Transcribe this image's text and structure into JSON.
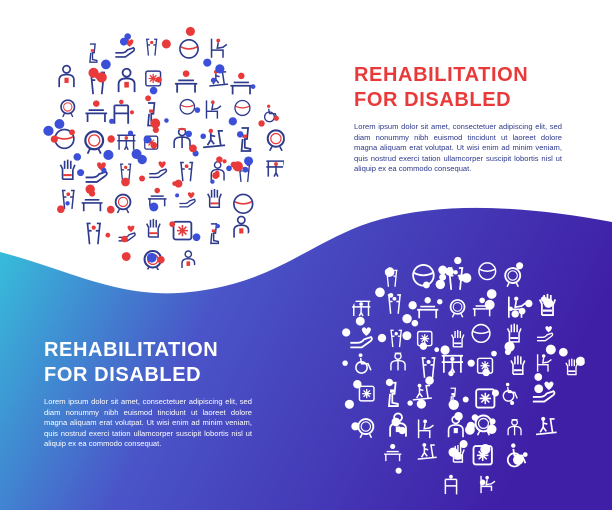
{
  "top_section": {
    "title_line1": "REHABILITATION",
    "title_line2": "FOR DISABLED",
    "body": "Lorem ipsum dolor sit amet, consectetuer adipiscing elit, sed diam nonummy nibh euismod tincidunt ut laoreet dolore magna aliquam erat volutpat. Ut wisi enim ad minim veniam, quis nostrud exerci tation ullamcorper suscipit lobortis nisl ut aliquip ex ea commodo consequat."
  },
  "bottom_section": {
    "title_line1": "REHABILITATION",
    "title_line2": "FOR DISABLED",
    "body": "Lorem ipsum dolor sit amet, consectetuer adipiscing elit, sed diam nonummy nibh euismod tincidunt ut laoreet dolore magna aliquam erat volutpat. Ut wisi enim ad minim veniam, quis nostrud exerci tation ullamcorper suscipit lobortis nisl ut aliquip ex ea commodo consequat."
  },
  "colors": {
    "accent_red": "#e83a3a",
    "accent_blue": "#2e3a8c",
    "dot_blue": "#3c4fd8",
    "gradient_start": "#35c6dc",
    "gradient_mid": "#4a55c8",
    "gradient_end": "#3f1fa6"
  },
  "icons": [
    "wheelchair-icon",
    "crutches-icon",
    "prosthetic-leg-icon",
    "prosthetic-hand-icon",
    "massage-table-icon",
    "parallel-bars-icon",
    "therapist-icon",
    "doctor-icon",
    "walker-icon",
    "exercise-ball-icon",
    "caring-hands-icon",
    "ice-pack-icon",
    "treadmill-icon",
    "balance-ring-icon",
    "chair-exercise-icon"
  ]
}
